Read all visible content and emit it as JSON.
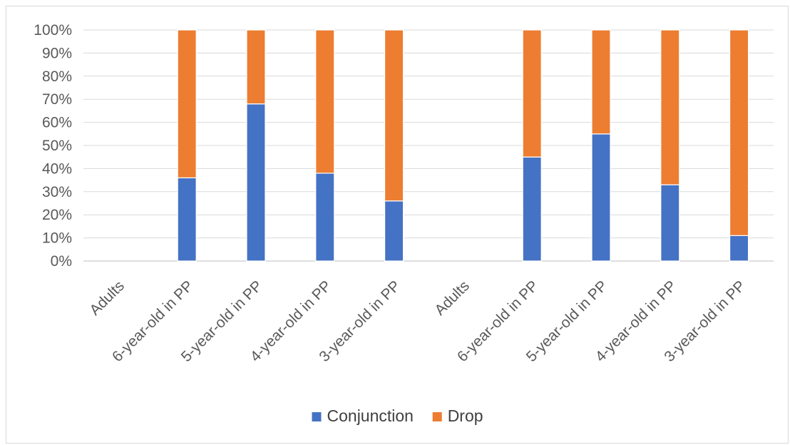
{
  "chart_data": {
    "type": "bar",
    "stacked": true,
    "normalized": true,
    "categories": [
      "Adults",
      "6-year-old in PP",
      "5-year-old in PP",
      "4-year-old in PP",
      "3-year-old in PP",
      "Adults",
      "6-year-old in PP",
      "5-year-old in PP",
      "4-year-old in PP",
      "3-year-old in PP"
    ],
    "series": [
      {
        "name": "Conjunction",
        "color": "#4472c4",
        "values": [
          null,
          36,
          68,
          38,
          26,
          null,
          45,
          55,
          33,
          11
        ]
      },
      {
        "name": "Drop",
        "color": "#ed7d31",
        "values": [
          null,
          64,
          32,
          62,
          74,
          null,
          55,
          45,
          67,
          89
        ]
      }
    ],
    "ylim": [
      0,
      100
    ],
    "yticks": [
      "0%",
      "10%",
      "20%",
      "30%",
      "40%",
      "50%",
      "60%",
      "70%",
      "80%",
      "90%",
      "100%"
    ],
    "grid": true,
    "legend_position": "bottom",
    "title": "",
    "xlabel": "",
    "ylabel": ""
  }
}
